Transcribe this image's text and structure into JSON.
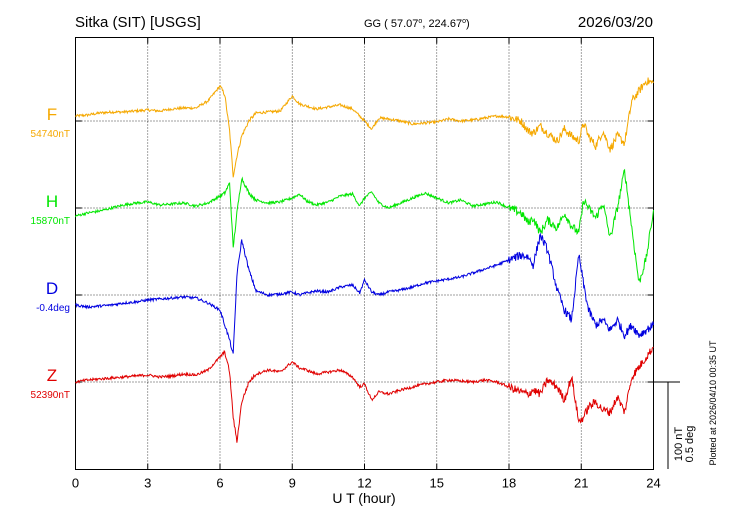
{
  "header": {
    "station": "Sitka (SIT)  [USGS]",
    "coords": "GG ( 57.07",
    "coords_mid": ", 224.67",
    "coords_end": ")",
    "date": "2026/03/20"
  },
  "footer": {
    "plotted": "Plotted at 2026/04/10 00:35 UT"
  },
  "colors": {
    "F": "#f5a800",
    "H": "#00e600",
    "D": "#0000e0",
    "Z": "#e00000",
    "grid": "#000000"
  },
  "chart_data": {
    "type": "line",
    "xlabel": "U T (hour)",
    "xlim": [
      0,
      24
    ],
    "x_ticks": [
      "0",
      "3",
      "6",
      "9",
      "12",
      "15",
      "18",
      "21",
      "24"
    ],
    "scale_bar": {
      "label1": "100 nT",
      "label2": "0.5 deg"
    },
    "series": [
      {
        "name": "F",
        "baseline_label": "54740nT",
        "x": [
          0,
          0.5,
          1.0,
          1.5,
          2.0,
          2.5,
          3.0,
          3.5,
          4.0,
          4.5,
          5.0,
          5.5,
          6.0,
          6.2,
          6.4,
          6.55,
          6.7,
          6.9,
          7.2,
          7.5,
          8.0,
          8.5,
          9.0,
          9.3,
          9.6,
          10.0,
          10.5,
          11.0,
          11.5,
          11.8,
          12.0,
          12.3,
          12.6,
          13.0,
          13.5,
          14.0,
          14.5,
          15.0,
          15.5,
          16.0,
          16.5,
          17.0,
          17.5,
          18.0,
          18.5,
          18.8,
          19.0,
          19.3,
          19.6,
          20.0,
          20.3,
          20.6,
          20.9,
          21.1,
          21.3,
          21.6,
          21.9,
          22.2,
          22.5,
          22.8,
          23.1,
          23.4,
          23.7,
          24.0
        ],
        "y": [
          5,
          6,
          8,
          9,
          9,
          10,
          11,
          10,
          12,
          13,
          13,
          20,
          35,
          26,
          -10,
          -55,
          -35,
          -15,
          0,
          8,
          9,
          10,
          25,
          17,
          15,
          12,
          14,
          16,
          12,
          5,
          0,
          -8,
          3,
          2,
          0,
          -3,
          -2,
          -1,
          2,
          0,
          1,
          3,
          5,
          4,
          0,
          -10,
          -12,
          -5,
          -12,
          -20,
          -8,
          -15,
          -20,
          -2,
          -15,
          -25,
          -10,
          -28,
          -15,
          -22,
          20,
          30,
          40,
          38
        ]
      },
      {
        "name": "H",
        "baseline_label": "15870nT",
        "x": [
          0,
          0.5,
          1.0,
          1.5,
          2.0,
          2.5,
          3.0,
          3.5,
          4.0,
          4.5,
          5.0,
          5.5,
          6.0,
          6.2,
          6.4,
          6.55,
          6.7,
          6.9,
          7.2,
          7.5,
          8.0,
          8.5,
          9.0,
          9.3,
          9.6,
          10.0,
          10.5,
          11.0,
          11.5,
          11.8,
          12.0,
          12.3,
          12.6,
          13.0,
          13.5,
          14.0,
          14.5,
          15.0,
          15.5,
          16.0,
          16.5,
          17.0,
          17.5,
          18.0,
          18.5,
          18.8,
          19.0,
          19.3,
          19.6,
          20.0,
          20.3,
          20.6,
          20.9,
          21.1,
          21.3,
          21.6,
          21.9,
          22.2,
          22.5,
          22.8,
          23.1,
          23.4,
          23.7,
          24.0
        ],
        "y": [
          -8,
          -5,
          -3,
          0,
          3,
          5,
          6,
          3,
          4,
          5,
          2,
          5,
          12,
          15,
          25,
          -40,
          -5,
          30,
          15,
          8,
          5,
          6,
          10,
          14,
          7,
          3,
          6,
          12,
          14,
          2,
          10,
          16,
          5,
          0,
          5,
          10,
          15,
          10,
          5,
          8,
          2,
          4,
          6,
          0,
          -5,
          -15,
          -10,
          -25,
          -12,
          -20,
          -5,
          -18,
          -25,
          8,
          0,
          -10,
          5,
          -30,
          0,
          38,
          -20,
          -75,
          -50,
          -2
        ]
      },
      {
        "name": "D",
        "baseline_label": "-0.4deg",
        "x": [
          0,
          0.5,
          1.0,
          1.5,
          2.0,
          2.5,
          3.0,
          3.5,
          4.0,
          4.5,
          5.0,
          5.5,
          6.0,
          6.2,
          6.4,
          6.55,
          6.7,
          6.9,
          7.2,
          7.5,
          8.0,
          8.5,
          9.0,
          9.3,
          9.6,
          10.0,
          10.5,
          11.0,
          11.5,
          11.8,
          12.0,
          12.3,
          12.6,
          13.0,
          13.5,
          14.0,
          14.5,
          15.0,
          15.5,
          16.0,
          16.5,
          17.0,
          17.5,
          18.0,
          18.5,
          18.8,
          19.0,
          19.3,
          19.6,
          20.0,
          20.3,
          20.6,
          20.9,
          21.1,
          21.3,
          21.6,
          21.9,
          22.2,
          22.5,
          22.8,
          23.1,
          23.4,
          23.7,
          24.0
        ],
        "y": [
          -10,
          -12,
          -11,
          -10,
          -8,
          -7,
          -5,
          -4,
          -3,
          -2,
          -3,
          -8,
          -15,
          -30,
          -45,
          -60,
          20,
          55,
          25,
          4,
          0,
          1,
          3,
          0,
          2,
          4,
          3,
          8,
          10,
          2,
          15,
          3,
          0,
          3,
          5,
          8,
          12,
          14,
          16,
          18,
          22,
          26,
          30,
          35,
          40,
          38,
          30,
          60,
          45,
          5,
          -15,
          -25,
          40,
          10,
          -15,
          -30,
          -25,
          -35,
          -25,
          -40,
          -30,
          -40,
          -35,
          -30
        ]
      },
      {
        "name": "Z",
        "baseline_label": "52390nT",
        "x": [
          0,
          0.5,
          1.0,
          1.5,
          2.0,
          2.5,
          3.0,
          3.5,
          4.0,
          4.5,
          5.0,
          5.5,
          6.0,
          6.2,
          6.4,
          6.55,
          6.7,
          6.9,
          7.2,
          7.5,
          8.0,
          8.5,
          9.0,
          9.3,
          9.6,
          10.0,
          10.5,
          11.0,
          11.5,
          11.8,
          12.0,
          12.3,
          12.6,
          13.0,
          13.5,
          14.0,
          14.5,
          15.0,
          15.5,
          16.0,
          16.5,
          17.0,
          17.5,
          18.0,
          18.5,
          18.8,
          19.0,
          19.3,
          19.6,
          20.0,
          20.3,
          20.6,
          20.9,
          21.1,
          21.3,
          21.6,
          21.9,
          22.2,
          22.5,
          22.8,
          23.1,
          23.4,
          23.7,
          24.0
        ],
        "y": [
          0,
          2,
          3,
          4,
          5,
          6,
          7,
          5,
          6,
          8,
          7,
          12,
          25,
          30,
          10,
          -35,
          -60,
          -20,
          0,
          8,
          12,
          10,
          20,
          14,
          12,
          8,
          10,
          12,
          5,
          -5,
          -2,
          -18,
          -10,
          -12,
          -8,
          -5,
          -2,
          0,
          2,
          1,
          0,
          2,
          0,
          -5,
          -10,
          -12,
          -8,
          -12,
          2,
          -5,
          -18,
          5,
          -40,
          -35,
          -25,
          -20,
          -28,
          -30,
          -15,
          -30,
          5,
          15,
          25,
          35
        ]
      }
    ]
  }
}
